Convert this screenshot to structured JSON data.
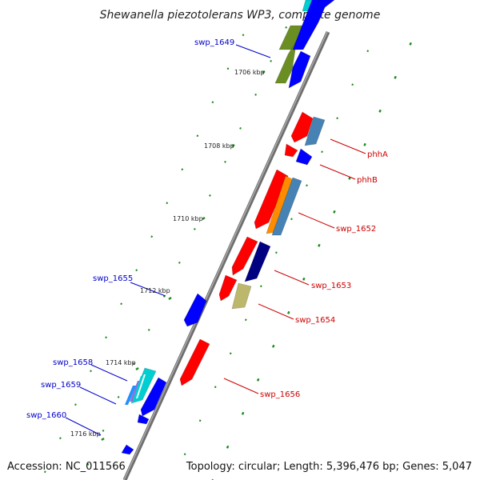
{
  "header": {
    "title": "Shewanella piezotolerans WP3, complete genome"
  },
  "footer": {
    "accession": "Accession: NC_011566",
    "summary": "Topology: circular; Length: 5,396,476 bp; Genes: 5,047"
  },
  "colors": {
    "backbone": "#808080",
    "tick": "#1a8a1a",
    "label_blue": "#0000cc",
    "label_red": "#cc0000",
    "gene_red": "#ff0000",
    "gene_blue": "#0000ff",
    "gene_olive": "#6b8e23",
    "gene_steel": "#4682b4",
    "gene_navy": "#000080",
    "gene_khaki": "#bdb76b",
    "gene_orange": "#ff8c00",
    "gene_cyan": "#00ced1"
  },
  "coordinates": [
    {
      "label": "1706 kbp"
    },
    {
      "label": "1708 kbp"
    },
    {
      "label": "1710 kbp"
    },
    {
      "label": "1712 kbp"
    },
    {
      "label": "1714 kbp"
    },
    {
      "label": "1716 kbp"
    }
  ],
  "gene_labels": [
    {
      "text": "swp_1649",
      "strand": "minus"
    },
    {
      "text": "phhA",
      "strand": "plus"
    },
    {
      "text": "phhB",
      "strand": "plus"
    },
    {
      "text": "swp_1652",
      "strand": "plus"
    },
    {
      "text": "swp_1655",
      "strand": "minus"
    },
    {
      "text": "swp_1653",
      "strand": "plus"
    },
    {
      "text": "swp_1654",
      "strand": "plus"
    },
    {
      "text": "swp_1658",
      "strand": "minus"
    },
    {
      "text": "swp_1656",
      "strand": "plus"
    },
    {
      "text": "swp_1659",
      "strand": "minus"
    },
    {
      "text": "swp_1660",
      "strand": "minus"
    }
  ],
  "genes": [
    {
      "name": "olive-gene-a",
      "color": "olive"
    },
    {
      "name": "olive-gene-b",
      "color": "olive"
    },
    {
      "name": "cyan-gene-top",
      "color": "cyan"
    },
    {
      "name": "blue-gene-top-a",
      "color": "blue"
    },
    {
      "name": "blue-gene-top-b",
      "color": "blue"
    },
    {
      "name": "blue-gene-1649",
      "color": "blue"
    },
    {
      "name": "red-gene-a",
      "color": "red"
    },
    {
      "name": "steelblue-gene-a",
      "color": "steel"
    },
    {
      "name": "red-gene-b",
      "color": "red"
    },
    {
      "name": "blue-gene-b",
      "color": "blue"
    },
    {
      "name": "red-gene-c",
      "color": "red"
    },
    {
      "name": "orange-gene",
      "color": "orange"
    },
    {
      "name": "steelblue-gene-b",
      "color": "steel"
    },
    {
      "name": "red-gene-d",
      "color": "red"
    },
    {
      "name": "navy-gene",
      "color": "navy"
    },
    {
      "name": "red-gene-e",
      "color": "red"
    },
    {
      "name": "khaki-gene",
      "color": "khaki"
    },
    {
      "name": "blue-gene-1655",
      "color": "blue"
    },
    {
      "name": "red-gene-1656",
      "color": "red"
    },
    {
      "name": "multicolor-gene-1658",
      "color": "cyan"
    },
    {
      "name": "blue-gene-1659",
      "color": "blue"
    },
    {
      "name": "blue-gene-1660",
      "color": "blue"
    },
    {
      "name": "blue-gene-bottom",
      "color": "blue"
    }
  ]
}
